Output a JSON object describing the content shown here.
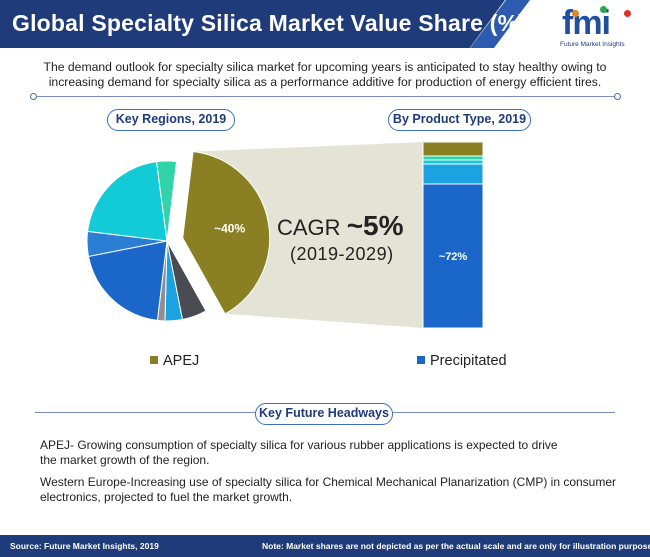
{
  "header": {
    "title": "Global Specialty Silica Market Value Share (%)",
    "logo_text": "fmi",
    "logo_subtitle": "Future Market Insights"
  },
  "intro": "The demand outlook for specialty silica market for upcoming years is anticipated to stay healthy owing to increasing demand for specialty silica as a performance additive for production of energy efficient tires.",
  "chart_data": [
    {
      "type": "pie",
      "title": "Key Regions, 2019",
      "slices": [
        {
          "name": "APEJ",
          "value": 40,
          "label": "~40%",
          "color": "#8a7f22"
        },
        {
          "name": "",
          "value": 5,
          "color": "#4a4a52"
        },
        {
          "name": "",
          "value": 3.5,
          "color": "#1aa3e0"
        },
        {
          "name": "",
          "value": 1.5,
          "color": "#8e8e93"
        },
        {
          "name": "",
          "value": 20,
          "color": "#1a67c9"
        },
        {
          "name": "",
          "value": 5,
          "color": "#2a7fd4"
        },
        {
          "name": "",
          "value": 21,
          "color": "#12cbd6"
        },
        {
          "name": "",
          "value": 4,
          "color": "#30d4a8"
        }
      ],
      "highlighted": "APEJ"
    },
    {
      "type": "bar",
      "stacked": true,
      "title": "By Product Type, 2019",
      "segments": [
        {
          "name": "Precipitated",
          "value": 72,
          "label": "~72%",
          "color": "#1a67c9"
        },
        {
          "name": "",
          "value": 10,
          "color": "#1aa3e0"
        },
        {
          "name": "",
          "value": 2,
          "color": "#12cbd6"
        },
        {
          "name": "",
          "value": 2,
          "color": "#30d4a8"
        },
        {
          "name": "",
          "value": 7,
          "color": "#8a7f22"
        }
      ],
      "highlighted": "Precipitated"
    }
  ],
  "cagr": {
    "label": "CAGR ",
    "value": "~5%",
    "period": "(2019-2029)"
  },
  "legend": {
    "left": {
      "label": "APEJ",
      "color": "#8a7f22"
    },
    "right": {
      "label": "Precipitated",
      "color": "#1a67c9"
    }
  },
  "headways": {
    "title": "Key Future Headways",
    "items": [
      "APEJ- Growing consumption of specialty silica for various rubber applications is expected to drive the market growth of the region.",
      "Western Europe-Increasing use of specialty silica for Chemical Mechanical Planarization (CMP) in consumer electronics, projected to fuel the market growth."
    ]
  },
  "footer": {
    "source": "Source: Future Market Insights, 2019",
    "note": "Note: Market shares are not depicted as per the actual scale and are only for illustration purposes."
  },
  "colors": {
    "brand_dark": "#1f3b7a",
    "brand_accent": "#3a6fbf",
    "connector": "#e4e4d6"
  }
}
